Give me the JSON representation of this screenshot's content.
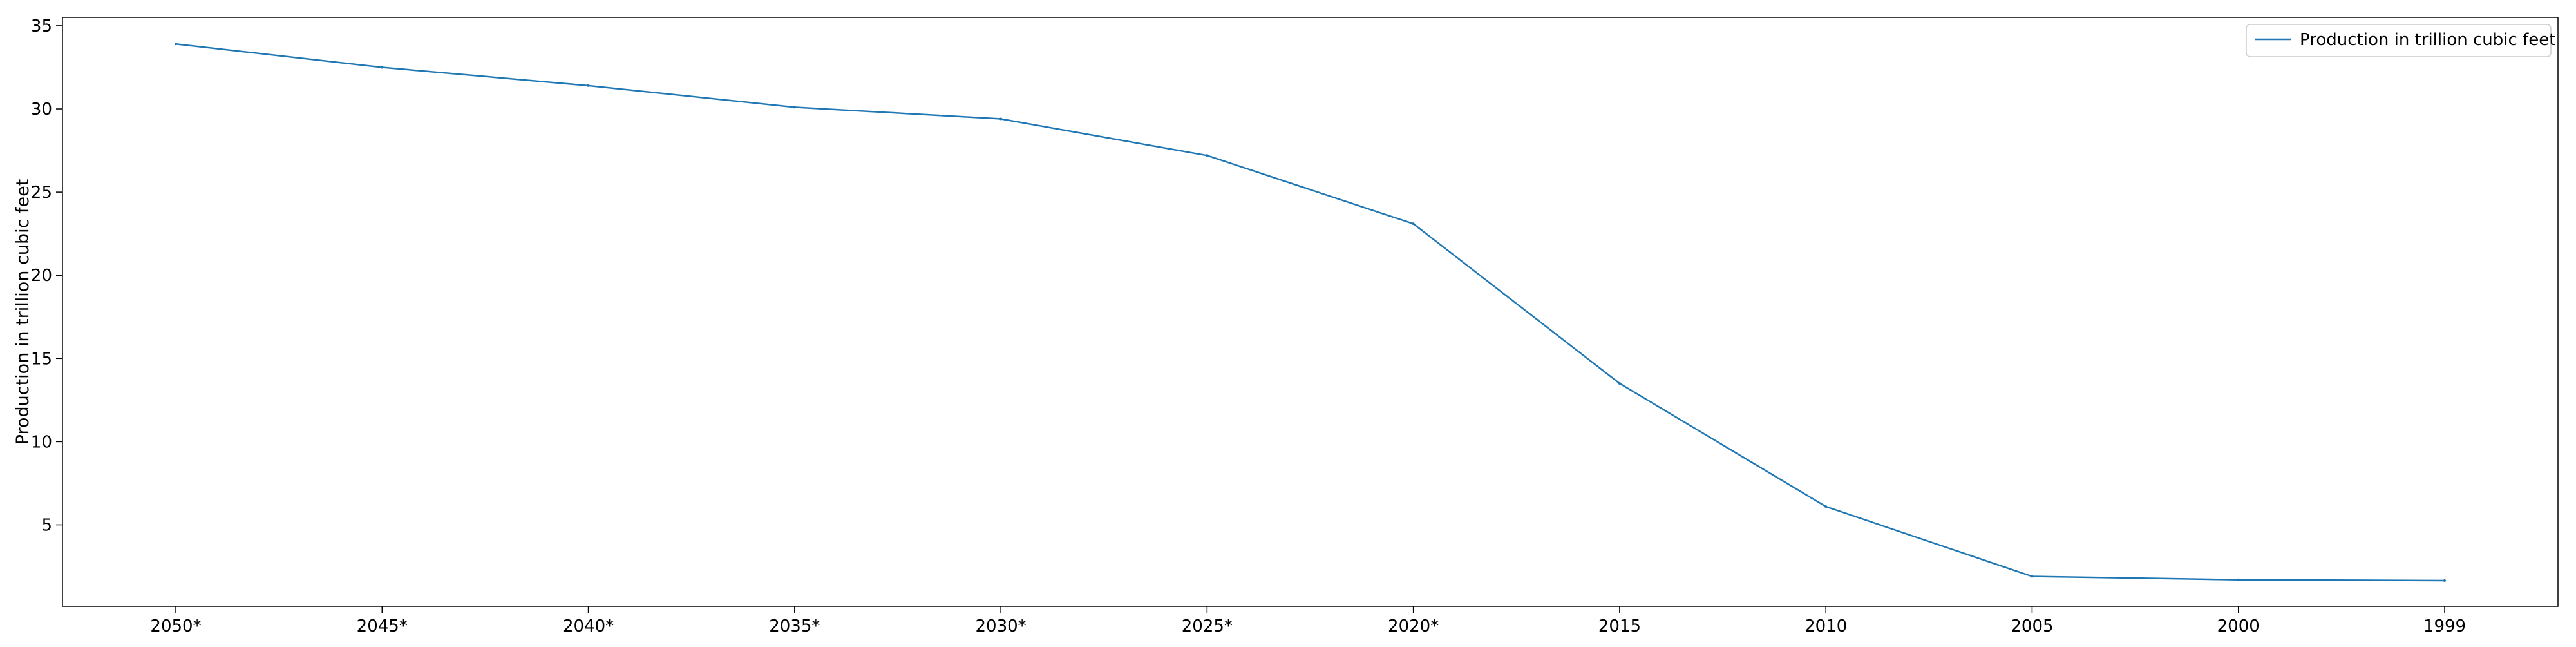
{
  "chart_data": {
    "type": "line",
    "title": "",
    "xlabel": "",
    "ylabel": "Production in trillion cubic feet",
    "categories": [
      "2050*",
      "2045*",
      "2040*",
      "2035*",
      "2030*",
      "2025*",
      "2020*",
      "2015",
      "2010",
      "2005",
      "2000",
      "1999"
    ],
    "series": [
      {
        "name": "Production in trillion cubic feet",
        "color": "#1f77b4",
        "values": [
          33.9,
          32.5,
          31.4,
          30.1,
          29.4,
          27.2,
          23.1,
          13.5,
          6.1,
          1.9,
          1.7,
          1.65
        ]
      }
    ],
    "ylim": [
      0.1,
      35.5
    ],
    "yticks": [
      5,
      10,
      15,
      20,
      25,
      30,
      35
    ],
    "grid": false,
    "legend_position": "top-right"
  }
}
